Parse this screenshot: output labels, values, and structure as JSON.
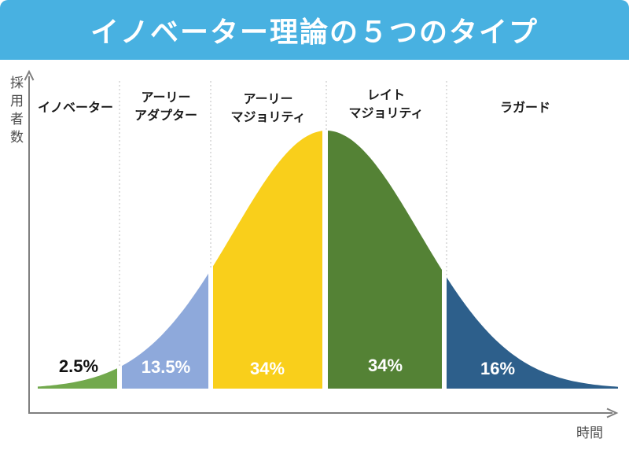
{
  "title": "イノベーター理論の５つのタイプ",
  "colors": {
    "header_bg": "#48B1E1",
    "title_text": "#FFFFFF",
    "axis": "#7F7F7F",
    "divider": "#BFBFBF",
    "axis_label_text": "#4D4D4D",
    "stage_label_text": "#1A1A1A"
  },
  "axes": {
    "y_label": "採用者数",
    "x_label": "時間"
  },
  "chart_data": {
    "type": "area",
    "title": "イノベーター理論の５つのタイプ",
    "xlabel": "時間",
    "ylabel": "採用者数",
    "curve_shape": "normal-distribution-bell",
    "grid": "off",
    "segments": [
      {
        "label": "イノベーター",
        "value_label": "2.5%",
        "value": 2.5,
        "color": "#72A94D",
        "value_text_color": "#111111"
      },
      {
        "label": "アーリー\nアダプター",
        "value_label": "13.5%",
        "value": 13.5,
        "color": "#8EA9DB",
        "value_text_color": "#FFFFFF"
      },
      {
        "label": "アーリー\nマジョリティ",
        "value_label": "34%",
        "value": 34,
        "color": "#F9CF1B",
        "value_text_color": "#FFFFFF"
      },
      {
        "label": "レイト\nマジョリティ",
        "value_label": "34%",
        "value": 34,
        "color": "#548235",
        "value_text_color": "#FFFFFF"
      },
      {
        "label": "ラガード",
        "value_label": "16%",
        "value": 16,
        "color": "#2D5F8B",
        "value_text_color": "#FFFFFF"
      }
    ]
  }
}
